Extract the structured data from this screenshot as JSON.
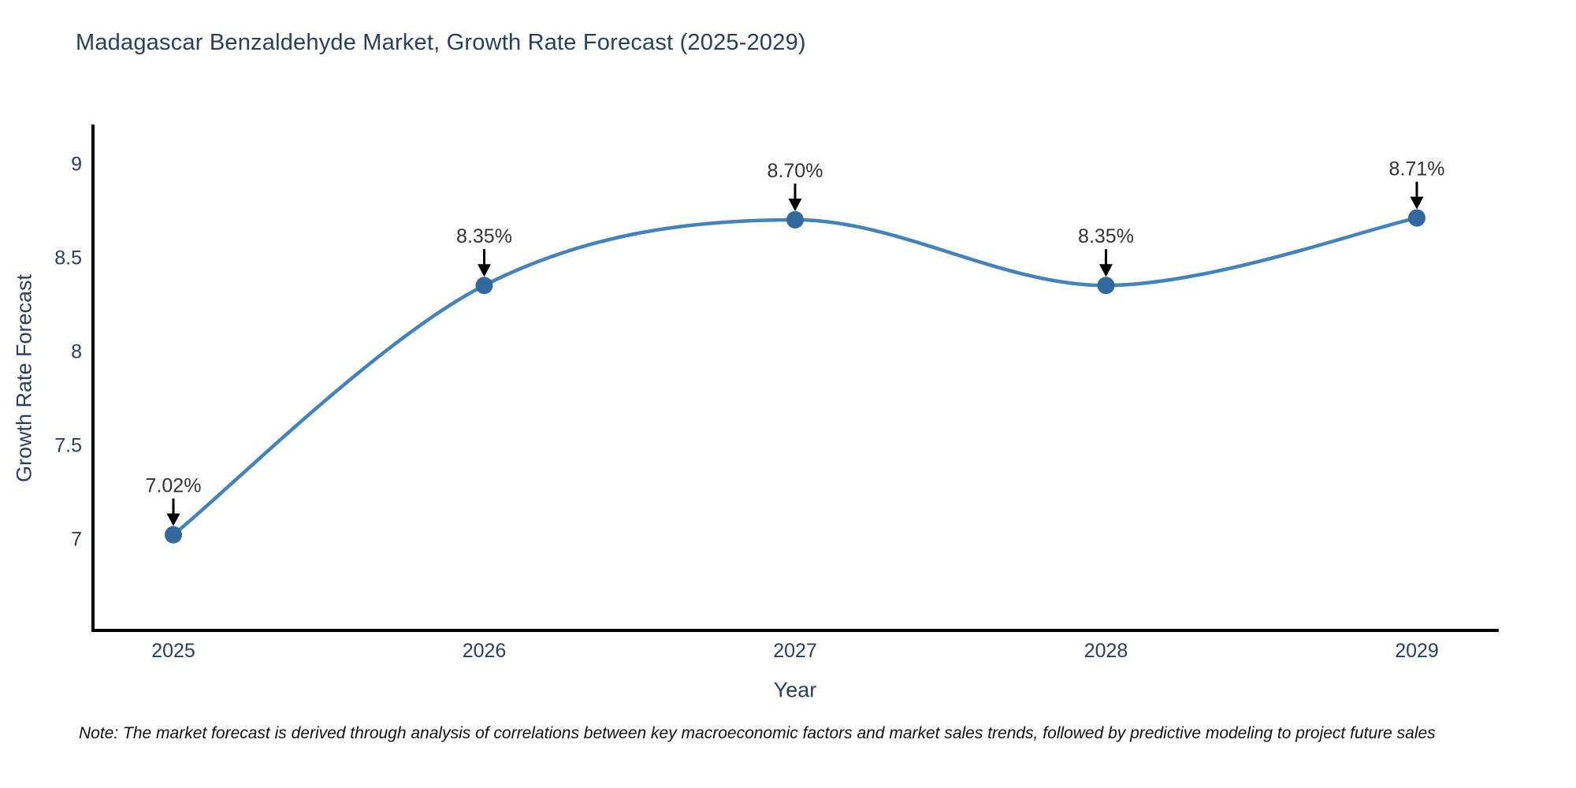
{
  "chart_data": {
    "type": "line",
    "title": "Madagascar Benzaldehyde Market, Growth Rate Forecast (2025-2029)",
    "x": [
      "2025",
      "2026",
      "2027",
      "2028",
      "2029"
    ],
    "values": [
      7.02,
      8.35,
      8.7,
      8.35,
      8.71
    ],
    "point_labels": [
      "7.02%",
      "8.35%",
      "8.70%",
      "8.35%",
      "8.71%"
    ],
    "xlabel": "Year",
    "ylabel": "Growth Rate Forecast",
    "yticks": [
      7,
      7.5,
      8,
      8.5,
      9
    ],
    "ytick_labels": [
      "7",
      "7.5",
      "8",
      "8.5",
      "9"
    ],
    "ylim": [
      6.51,
      9.2
    ],
    "line_shape": "spline",
    "grid": false,
    "legend": "none",
    "line_color": "#4482bb",
    "marker_color": "#31699f",
    "axis_color": "#000000",
    "tick_color": "#2a3f5f",
    "annotation_text_color": "#333333",
    "annotation_arrow_color": "#000000",
    "note": "Note: The market forecast is derived through analysis of correlations between key macroeconomic factors and market sales trends, followed by predictive modeling to project future sales"
  }
}
